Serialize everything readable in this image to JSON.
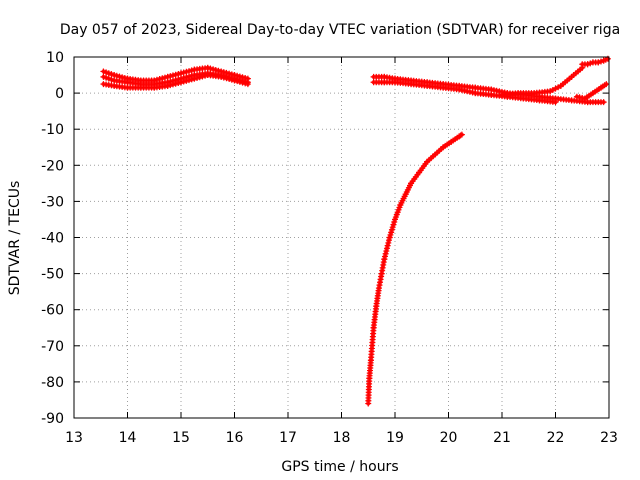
{
  "chart_data": {
    "type": "scatter",
    "title": "Day 057 of 2023, Sidereal Day-to-day VTEC variation (SDTVAR) for receiver riga",
    "xlabel": "GPS time / hours",
    "ylabel": "SDTVAR / TECUs",
    "xlim": [
      13,
      23
    ],
    "ylim": [
      -90,
      10
    ],
    "xticks": [
      13,
      14,
      15,
      16,
      17,
      18,
      19,
      20,
      21,
      22,
      23
    ],
    "yticks": [
      10,
      0,
      -10,
      -20,
      -30,
      -40,
      -50,
      -60,
      -70,
      -80,
      -90
    ],
    "grid": true,
    "legend": "none",
    "marker": "+",
    "color": "#ff0000",
    "series": [
      {
        "x": [
          13.55,
          13.75,
          14.0,
          14.25,
          14.5,
          14.75,
          15.0,
          15.25,
          15.5,
          15.75,
          16.0,
          16.25
        ],
        "y": [
          4.5,
          3.5,
          3.0,
          2.5,
          2.5,
          3.0,
          4.0,
          5.0,
          5.5,
          5.0,
          4.0,
          3.0
        ]
      },
      {
        "x": [
          13.55,
          13.75,
          14.0,
          14.25,
          14.5,
          14.75,
          15.0,
          15.25,
          15.5,
          15.75,
          16.0,
          16.25
        ],
        "y": [
          2.5,
          2.0,
          1.5,
          1.5,
          1.5,
          2.0,
          3.0,
          4.0,
          5.0,
          4.5,
          3.5,
          2.5
        ]
      },
      {
        "x": [
          13.55,
          13.75,
          14.0,
          14.25,
          14.5,
          14.75,
          15.0,
          15.25,
          15.5,
          15.75,
          16.0,
          16.25
        ],
        "y": [
          6.0,
          5.0,
          4.0,
          3.5,
          3.5,
          4.5,
          5.5,
          6.5,
          7.0,
          6.0,
          5.0,
          4.0
        ]
      },
      {
        "x": [
          18.6,
          18.8,
          19.0,
          19.3,
          19.6,
          19.9,
          20.2,
          20.5,
          20.8,
          21.1,
          21.4,
          21.7,
          22.0,
          22.3,
          22.6,
          22.9
        ],
        "y": [
          4.5,
          4.5,
          4.0,
          3.5,
          3.0,
          2.5,
          2.0,
          1.5,
          1.0,
          0.0,
          -0.5,
          -1.0,
          -1.5,
          -2.0,
          -2.5,
          -2.5
        ]
      },
      {
        "x": [
          18.6,
          18.8,
          19.0,
          19.3,
          19.6,
          19.9,
          20.2,
          20.5,
          20.8,
          21.1,
          21.4,
          21.7,
          22.0
        ],
        "y": [
          3.0,
          3.0,
          3.0,
          2.5,
          2.0,
          1.5,
          1.0,
          0.0,
          -0.5,
          -1.0,
          -1.5,
          -2.0,
          -2.5
        ]
      },
      {
        "x": [
          21.0,
          21.3,
          21.6,
          21.9,
          22.1,
          22.3,
          22.5
        ],
        "y": [
          -0.5,
          0.0,
          0.0,
          0.5,
          2.0,
          4.5,
          7.0
        ]
      },
      {
        "x": [
          22.4,
          22.55,
          22.7,
          22.85,
          22.95
        ],
        "y": [
          -1.0,
          -1.5,
          0.0,
          1.5,
          2.5
        ]
      },
      {
        "x": [
          22.5,
          22.6,
          22.7,
          22.8,
          22.9,
          22.98
        ],
        "y": [
          8.0,
          8.0,
          8.5,
          8.5,
          9.0,
          9.5
        ]
      },
      {
        "x": [
          18.5,
          18.52,
          18.55,
          18.6,
          18.65,
          18.7,
          18.75,
          18.8,
          18.9,
          19.0,
          19.1,
          19.2,
          19.3,
          19.45,
          19.6,
          19.75,
          19.9,
          20.05,
          20.2,
          20.25
        ],
        "y": [
          -86,
          -79,
          -74,
          -65,
          -59,
          -54,
          -50,
          -46,
          -40,
          -35,
          -31,
          -28,
          -25,
          -22,
          -19,
          -17,
          -15,
          -13.5,
          -12,
          -11.5
        ]
      }
    ]
  }
}
